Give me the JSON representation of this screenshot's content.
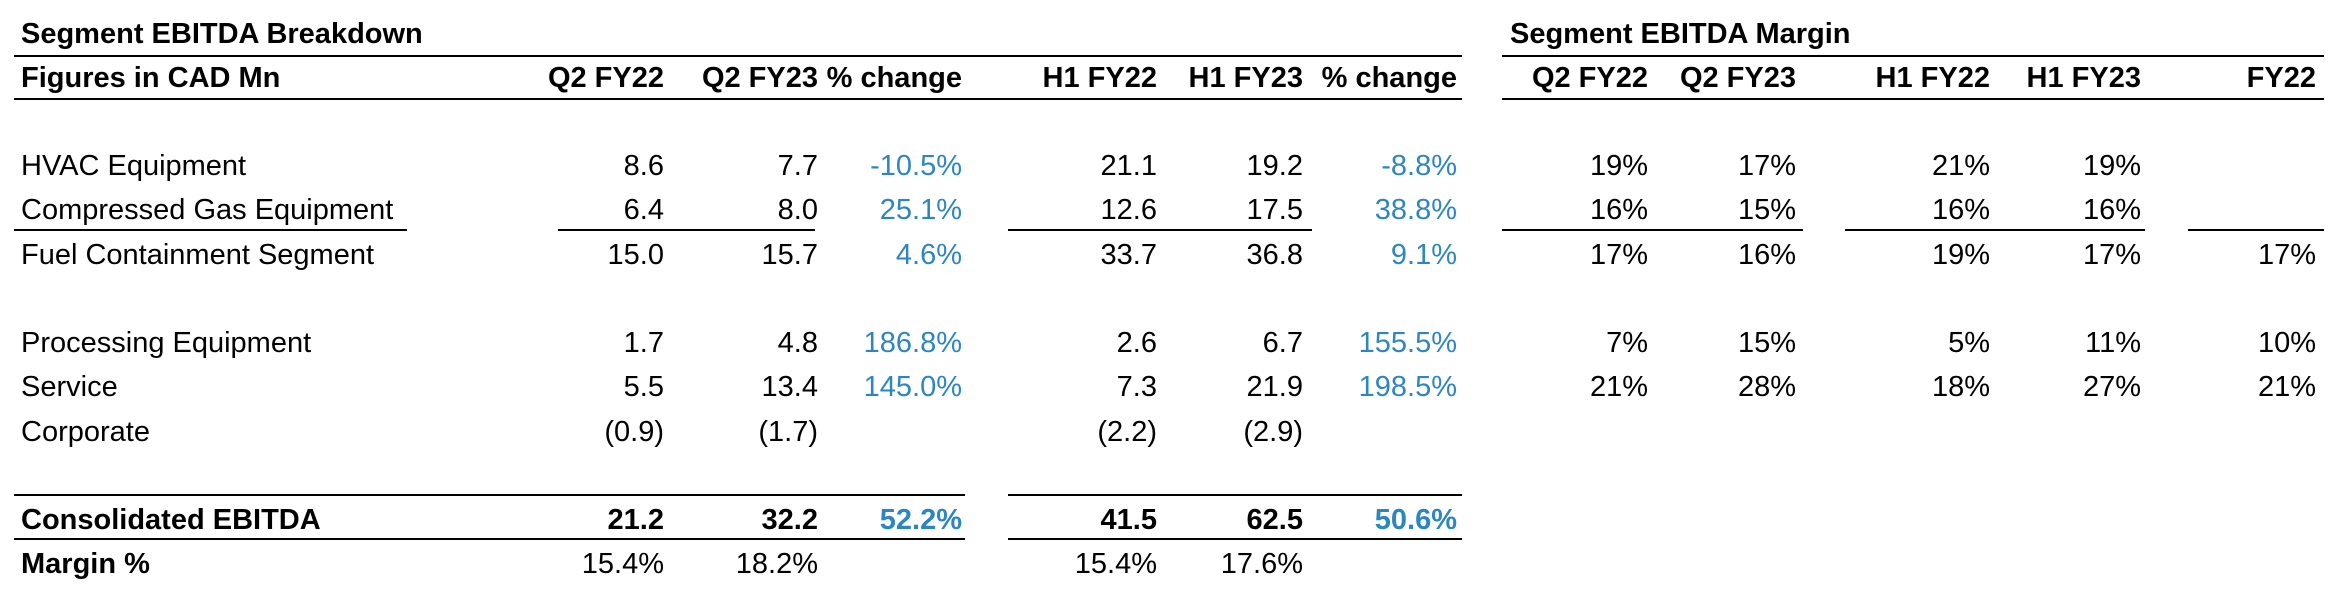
{
  "left_table": {
    "title": "Segment EBITDA Breakdown",
    "header": {
      "label": "Figures in CAD Mn",
      "columns": [
        "Q2 FY22",
        "Q2 FY23",
        "% change",
        "H1 FY22",
        "H1 FY23",
        "% change"
      ]
    },
    "rows": [
      {
        "label": "HVAC Equipment",
        "values": [
          "8.6",
          "7.7",
          "-10.5%",
          "21.1",
          "19.2",
          "-8.8%"
        ]
      },
      {
        "label": "Compressed Gas Equipment",
        "values": [
          "6.4",
          "8.0",
          "25.1%",
          "12.6",
          "17.5",
          "38.8%"
        ]
      },
      {
        "label": "Fuel Containment Segment",
        "values": [
          "15.0",
          "15.7",
          "4.6%",
          "33.7",
          "36.8",
          "9.1%"
        ]
      },
      {
        "label": "Processing Equipment",
        "values": [
          "1.7",
          "4.8",
          "186.8%",
          "2.6",
          "6.7",
          "155.5%"
        ]
      },
      {
        "label": "Service",
        "values": [
          "5.5",
          "13.4",
          "145.0%",
          "7.3",
          "21.9",
          "198.5%"
        ]
      },
      {
        "label": "Corporate",
        "values": [
          "(0.9)",
          "(1.7)",
          "",
          "(2.2)",
          "(2.9)",
          ""
        ]
      },
      {
        "label": "Consolidated EBITDA",
        "values": [
          "21.2",
          "32.2",
          "52.2%",
          "41.5",
          "62.5",
          "50.6%"
        ]
      },
      {
        "label": "Margin %",
        "values": [
          "15.4%",
          "18.2%",
          "",
          "15.4%",
          "17.6%",
          ""
        ]
      }
    ]
  },
  "right_table": {
    "title": "Segment EBITDA Margin",
    "columns": [
      "Q2 FY22",
      "Q2 FY23",
      "H1 FY22",
      "H1 FY23",
      "FY22"
    ],
    "rows": [
      [
        "19%",
        "17%",
        "21%",
        "19%",
        ""
      ],
      [
        "16%",
        "15%",
        "16%",
        "16%",
        ""
      ],
      [
        "17%",
        "16%",
        "19%",
        "17%",
        "17%"
      ],
      [
        "7%",
        "15%",
        "5%",
        "11%",
        "10%"
      ],
      [
        "21%",
        "28%",
        "18%",
        "27%",
        "21%"
      ]
    ]
  },
  "colors": {
    "change_text": "#2e86c1",
    "text": "#000000"
  }
}
